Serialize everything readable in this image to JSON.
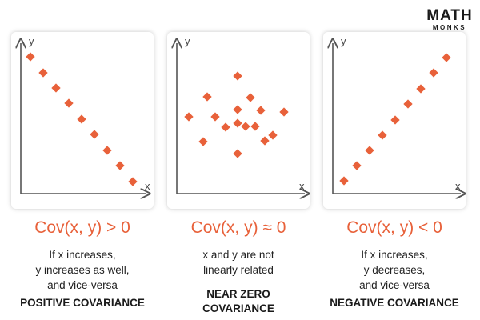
{
  "logo": {
    "main": "MATH",
    "sub": "MONKS"
  },
  "panels": [
    {
      "axis_y": "y",
      "axis_x": "x",
      "formula": "Cov(x, y) > 0",
      "description": [
        "If x increases,",
        "y increases as well,",
        "and vice-versa"
      ],
      "label": [
        "POSITIVE COVARIANCE"
      ]
    },
    {
      "axis_y": "y",
      "axis_x": "x",
      "formula": "Cov(x, y) ≈ 0",
      "description": [
        "x and y are not",
        "linearly related"
      ],
      "label": [
        "NEAR ZERO",
        "COVARIANCE"
      ]
    },
    {
      "axis_y": "y",
      "axis_x": "x",
      "formula": "Cov(x, y) < 0",
      "description": [
        "If x increases,",
        "y decreases,",
        "and vice-versa"
      ],
      "label": [
        "NEGATIVE COVARIANCE"
      ]
    }
  ],
  "colors": {
    "points": "#e8613a",
    "axes": "#555555",
    "formula": "#e8613a"
  }
}
